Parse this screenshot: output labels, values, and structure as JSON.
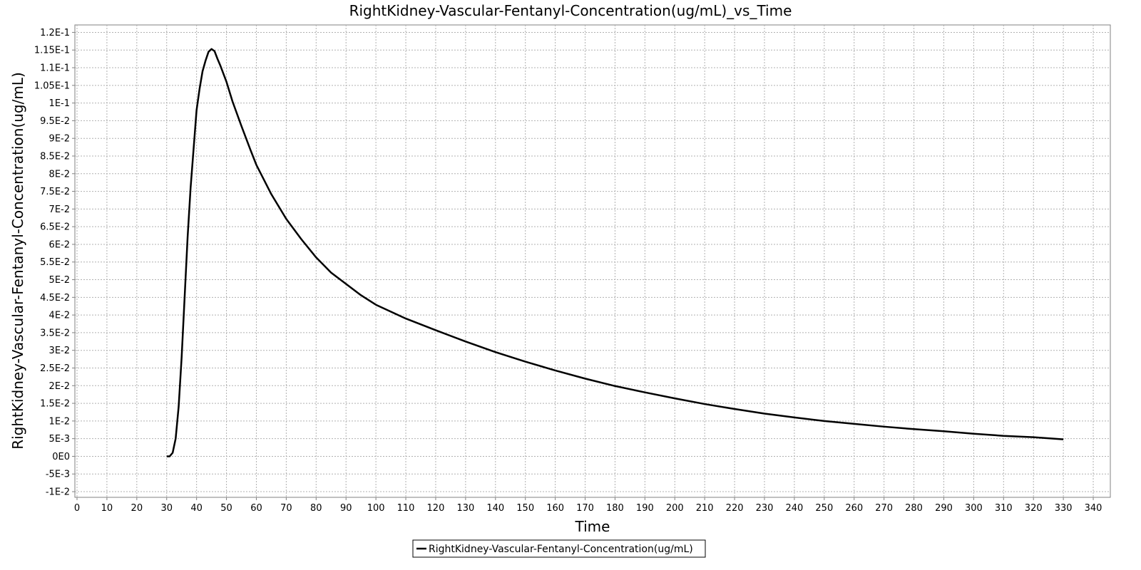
{
  "chart_data": {
    "type": "line",
    "title": "RightKidney-Vascular-Fentanyl-Concentration(ug/mL)_vs_Time",
    "xlabel": "Time",
    "ylabel": "RightKidney-Vascular-Fentanyl-Concentration(ug/mL)",
    "xlim": [
      0,
      345
    ],
    "ylim": [
      -0.011,
      0.1215
    ],
    "x_ticks": [
      0,
      10,
      20,
      30,
      40,
      50,
      60,
      70,
      80,
      90,
      100,
      110,
      120,
      130,
      140,
      150,
      160,
      170,
      180,
      190,
      200,
      210,
      220,
      230,
      240,
      250,
      260,
      270,
      280,
      290,
      300,
      310,
      320,
      330,
      340
    ],
    "x_tick_labels": [
      "0",
      "10",
      "20",
      "30",
      "40",
      "50",
      "60",
      "70",
      "80",
      "90",
      "100",
      "110",
      "120",
      "130",
      "140",
      "150",
      "160",
      "170",
      "180",
      "190",
      "200",
      "210",
      "220",
      "230",
      "240",
      "250",
      "260",
      "270",
      "280",
      "290",
      "300",
      "310",
      "320",
      "330",
      "340"
    ],
    "y_ticks": [
      -0.01,
      -0.005,
      0,
      0.005,
      0.01,
      0.015,
      0.02,
      0.025,
      0.03,
      0.035,
      0.04,
      0.045,
      0.05,
      0.055,
      0.06,
      0.065,
      0.07,
      0.075,
      0.08,
      0.085,
      0.09,
      0.095,
      0.1,
      0.105,
      0.11,
      0.115,
      0.12
    ],
    "y_tick_labels": [
      "-1E-2",
      "-5E-3",
      "0E0",
      "5E-3",
      "1E-2",
      "1.5E-2",
      "2E-2",
      "2.5E-2",
      "3E-2",
      "3.5E-2",
      "4E-2",
      "4.5E-2",
      "5E-2",
      "5.5E-2",
      "6E-2",
      "6.5E-2",
      "7E-2",
      "7.5E-2",
      "8E-2",
      "8.5E-2",
      "9E-2",
      "9.5E-2",
      "1E-1",
      "1.05E-1",
      "1.1E-1",
      "1.15E-1",
      "1.2E-1"
    ],
    "grid": true,
    "legend_position": "bottom-center",
    "series": [
      {
        "name": "RightKidney-Vascular-Fentanyl-Concentration(ug/mL)",
        "color": "#000000",
        "x": [
          30,
          31,
          32,
          33,
          34,
          35,
          36,
          37,
          38,
          39,
          40,
          41,
          42,
          43,
          44,
          45,
          46,
          47,
          48,
          50,
          52,
          55,
          58,
          60,
          65,
          70,
          75,
          80,
          85,
          90,
          95,
          100,
          110,
          120,
          130,
          140,
          150,
          160,
          170,
          180,
          190,
          200,
          210,
          220,
          230,
          240,
          250,
          260,
          270,
          280,
          290,
          300,
          310,
          320,
          330
        ],
        "y": [
          0,
          0,
          0.001,
          0.005,
          0.014,
          0.028,
          0.045,
          0.062,
          0.076,
          0.087,
          0.098,
          0.104,
          0.109,
          0.112,
          0.1145,
          0.1153,
          0.1147,
          0.1125,
          0.1105,
          0.106,
          0.1005,
          0.0935,
          0.0868,
          0.0825,
          0.0742,
          0.0672,
          0.0615,
          0.0563,
          0.052,
          0.0488,
          0.0456,
          0.0429,
          0.039,
          0.0357,
          0.0325,
          0.0295,
          0.0268,
          0.0243,
          0.022,
          0.0199,
          0.0181,
          0.0164,
          0.0148,
          0.0134,
          0.0121,
          0.011,
          0.01,
          0.0092,
          0.0084,
          0.0077,
          0.0071,
          0.0064,
          0.0058,
          0.0054,
          0.0048
        ]
      }
    ]
  }
}
